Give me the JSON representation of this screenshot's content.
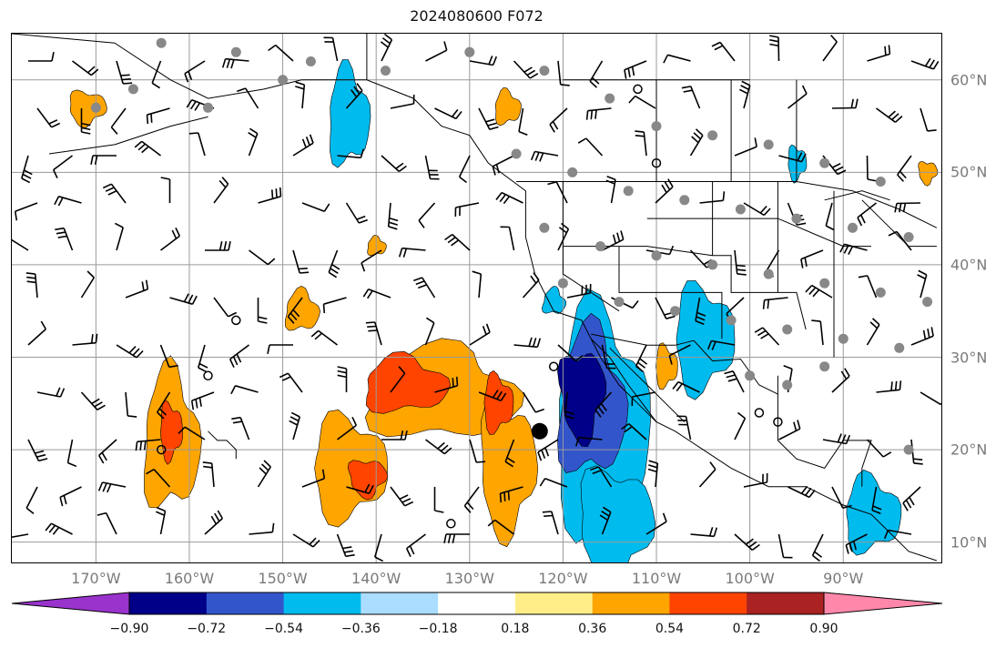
{
  "title": "2024080600 F072",
  "lat_labels": [
    {
      "text": "60°N",
      "lat": 60
    },
    {
      "text": "50°N",
      "lat": 50
    },
    {
      "text": "40°N",
      "lat": 40
    },
    {
      "text": "30°N",
      "lat": 30
    },
    {
      "text": "20°N",
      "lat": 20
    },
    {
      "text": "10°N",
      "lat": 10
    }
  ],
  "lon_labels": [
    {
      "text": "170°W",
      "lon": -170
    },
    {
      "text": "160°W",
      "lon": -160
    },
    {
      "text": "150°W",
      "lon": -150
    },
    {
      "text": "140°W",
      "lon": -140
    },
    {
      "text": "130°W",
      "lon": -130
    },
    {
      "text": "120°W",
      "lon": -120
    },
    {
      "text": "110°W",
      "lon": -110
    },
    {
      "text": "100°W",
      "lon": -100
    },
    {
      "text": "90°W",
      "lon": -90
    }
  ],
  "map_extent": {
    "lon_min": -179,
    "lon_max": -79.5,
    "lat_min": 7.8,
    "lat_max": 65
  },
  "colorbar": {
    "ticks": [
      "−0.90",
      "−0.72",
      "−0.54",
      "−0.36",
      "−0.18",
      "0.18",
      "0.36",
      "0.54",
      "0.72",
      "0.90"
    ],
    "colors": [
      "#9933cc",
      "#000088",
      "#3355cc",
      "#00bbee",
      "#aaddff",
      "#ffffff",
      "#ffee88",
      "#ffa500",
      "#ff4400",
      "#aa2222",
      "#ff88aa"
    ]
  },
  "fill_colors": {
    "neg_light": "#00bbee",
    "neg_mid": "#3355cc",
    "neg_dark": "#000088",
    "pos_light": "#ffa500",
    "pos_mid": "#ff4400"
  },
  "big_marker": {
    "lon": -122.5,
    "lat": 22
  }
}
